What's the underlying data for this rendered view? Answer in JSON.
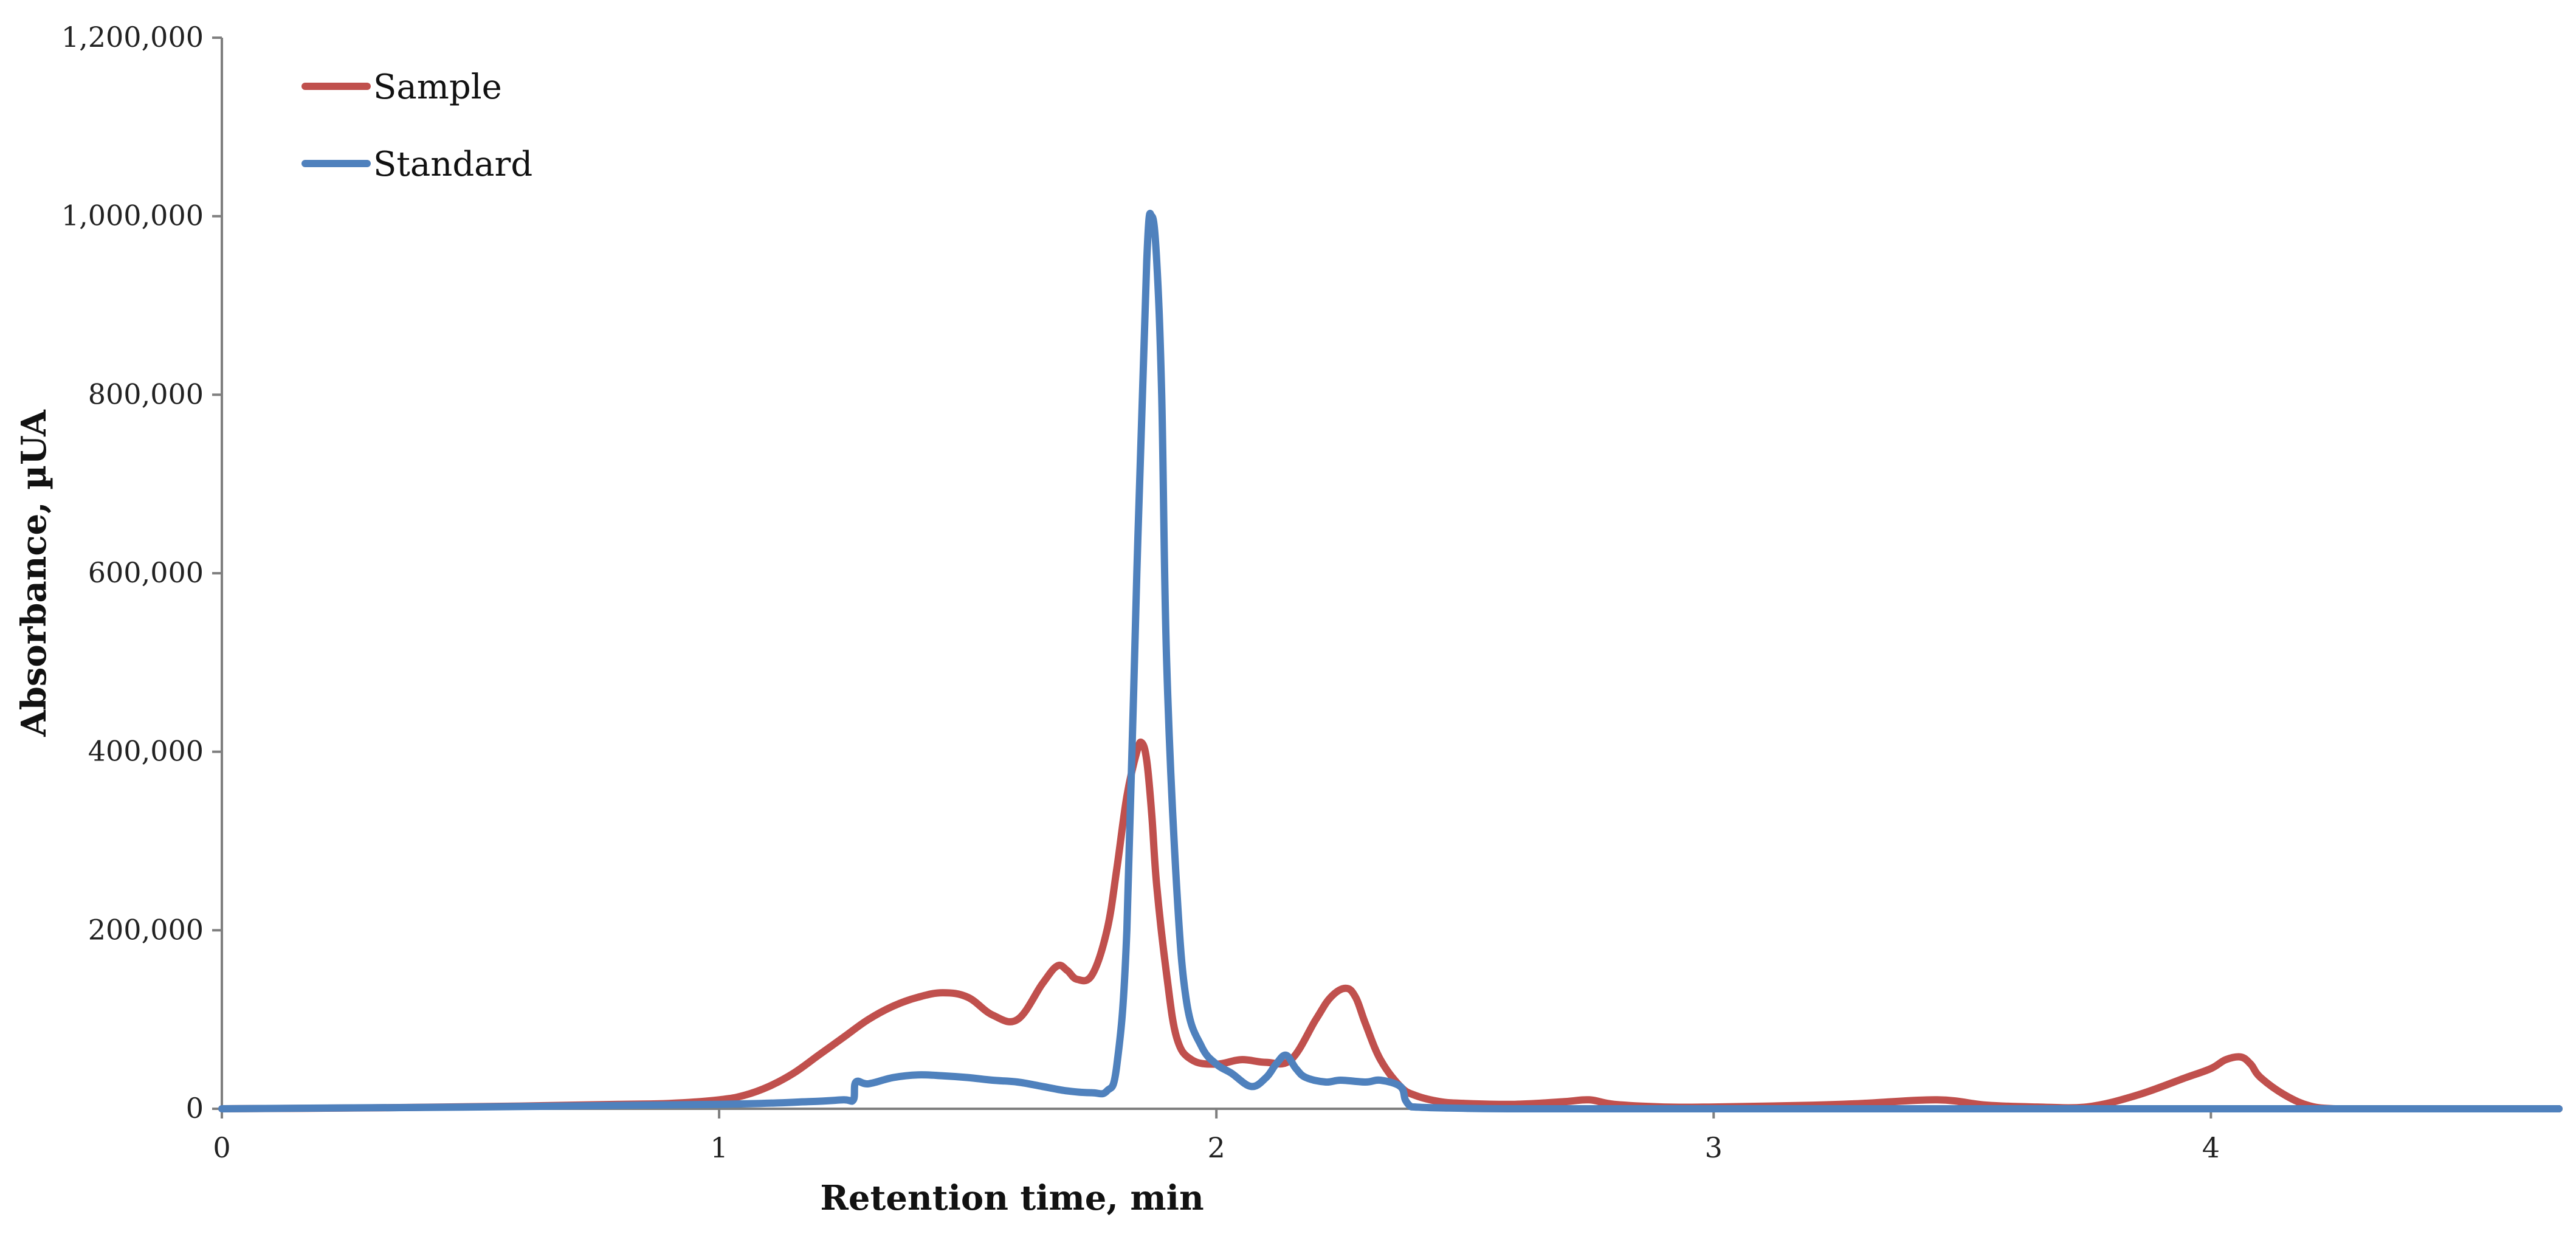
{
  "chart_data": {
    "type": "line",
    "xlabel": "Retention time, min",
    "ylabel": "Absorbance, µUA",
    "xlim": [
      0,
      4.7
    ],
    "ylim": [
      0,
      1200000
    ],
    "xticks": [
      0,
      1,
      2,
      3,
      4
    ],
    "xtick_labels": [
      "0",
      "1",
      "2",
      "3",
      "4"
    ],
    "yticks": [
      0,
      200000,
      400000,
      600000,
      800000,
      1000000,
      1200000
    ],
    "ytick_labels": [
      "0",
      "200,000",
      "400,000",
      "600,000",
      "800,000",
      "1,000,000",
      "1,200,000"
    ],
    "grid": false,
    "legend_position": "top-left",
    "series": [
      {
        "name": "Sample",
        "color": "#c0504d",
        "x": [
          0,
          0.3,
          0.6,
          0.8,
          0.9,
          1.0,
          1.05,
          1.1,
          1.15,
          1.2,
          1.25,
          1.3,
          1.35,
          1.4,
          1.45,
          1.5,
          1.55,
          1.6,
          1.65,
          1.68,
          1.7,
          1.72,
          1.75,
          1.78,
          1.8,
          1.82,
          1.84,
          1.85,
          1.86,
          1.87,
          1.88,
          1.9,
          1.92,
          1.95,
          2.0,
          2.05,
          2.1,
          2.15,
          2.2,
          2.23,
          2.26,
          2.28,
          2.3,
          2.33,
          2.37,
          2.4,
          2.45,
          2.5,
          2.6,
          2.7,
          2.75,
          2.8,
          2.9,
          3.0,
          3.2,
          3.3,
          3.45,
          3.55,
          3.65,
          3.75,
          3.85,
          3.95,
          4.0,
          4.03,
          4.06,
          4.08,
          4.1,
          4.15,
          4.2,
          4.25,
          4.3,
          4.5,
          4.7
        ],
        "values": [
          0,
          1000,
          3000,
          5000,
          6000,
          10000,
          15000,
          25000,
          40000,
          60000,
          80000,
          100000,
          115000,
          125000,
          130000,
          125000,
          105000,
          100000,
          140000,
          160000,
          155000,
          145000,
          150000,
          200000,
          270000,
          350000,
          400000,
          410000,
          390000,
          330000,
          250000,
          150000,
          80000,
          55000,
          50000,
          55000,
          52000,
          55000,
          100000,
          125000,
          135000,
          125000,
          95000,
          55000,
          25000,
          15000,
          8000,
          6000,
          5000,
          8000,
          10000,
          5000,
          2000,
          2000,
          4000,
          6000,
          10000,
          4000,
          2000,
          2000,
          15000,
          35000,
          45000,
          55000,
          58000,
          50000,
          35000,
          15000,
          3000,
          0,
          0,
          0,
          0
        ]
      },
      {
        "name": "Standard",
        "color": "#4f81bd",
        "x": [
          0,
          0.5,
          1.0,
          1.18,
          1.25,
          1.27,
          1.275,
          1.3,
          1.35,
          1.4,
          1.45,
          1.5,
          1.55,
          1.6,
          1.65,
          1.7,
          1.75,
          1.78,
          1.8,
          1.82,
          1.84,
          1.86,
          1.87,
          1.88,
          1.89,
          1.9,
          1.92,
          1.94,
          1.97,
          2.0,
          2.03,
          2.07,
          2.1,
          2.12,
          2.14,
          2.16,
          2.18,
          2.22,
          2.25,
          2.3,
          2.33,
          2.37,
          2.38,
          2.39,
          2.4,
          2.45,
          2.6,
          3.0,
          3.6,
          4.0,
          4.7
        ],
        "values": [
          0,
          2000,
          5000,
          8000,
          10000,
          10000,
          30000,
          28000,
          35000,
          38000,
          37000,
          35000,
          32000,
          30000,
          25000,
          20000,
          18000,
          20000,
          50000,
          200000,
          600000,
          950000,
          1000000,
          950000,
          800000,
          500000,
          250000,
          120000,
          70000,
          50000,
          40000,
          25000,
          35000,
          50000,
          60000,
          45000,
          35000,
          30000,
          32000,
          30000,
          32000,
          25000,
          10000,
          3000,
          2000,
          1000,
          0,
          0,
          0,
          0,
          0
        ]
      }
    ]
  }
}
